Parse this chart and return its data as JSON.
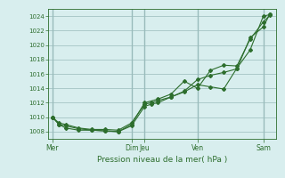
{
  "title": "",
  "xlabel": "Pression niveau de la mer( hPa )",
  "ylim": [
    1007,
    1025
  ],
  "yticks": [
    1008,
    1010,
    1012,
    1014,
    1016,
    1018,
    1020,
    1022,
    1024
  ],
  "bg_color": "#d8eeee",
  "grid_color": "#99bbbb",
  "line_color": "#2d6e2d",
  "xtick_labels": [
    "Mer",
    "",
    "Dim",
    "Jeu",
    "",
    "Ven",
    "",
    "Sam"
  ],
  "vline_positions": [
    0,
    6,
    7,
    11,
    16
  ],
  "vline_labels": [
    "Mer",
    "Dim",
    "Jeu",
    "Ven",
    "Sam"
  ],
  "line1_x": [
    0,
    0.5,
    1,
    2,
    3,
    4,
    5,
    6,
    7,
    7.5,
    8,
    9,
    10,
    11,
    12,
    13,
    14,
    15,
    16,
    16.5
  ],
  "line1_y": [
    1010,
    1009.2,
    1009.0,
    1008.5,
    1008.3,
    1008.3,
    1008.2,
    1009.2,
    1011.8,
    1012.0,
    1012.3,
    1012.8,
    1013.5,
    1014.5,
    1014.2,
    1013.9,
    1016.8,
    1019.3,
    1024.0,
    1024.2
  ],
  "line2_x": [
    0,
    0.5,
    1,
    2,
    3,
    4,
    5,
    6,
    7,
    7.5,
    8,
    9,
    10,
    11,
    12,
    13,
    14,
    15,
    16,
    16.5
  ],
  "line2_y": [
    1010,
    1009.0,
    1008.8,
    1008.4,
    1008.2,
    1008.1,
    1008.0,
    1008.8,
    1011.5,
    1011.8,
    1012.0,
    1012.8,
    1013.6,
    1015.2,
    1015.8,
    1016.2,
    1016.7,
    1021.0,
    1022.5,
    1024.3
  ],
  "line3_x": [
    0,
    0.5,
    1,
    2,
    3,
    4,
    5,
    6,
    7,
    8,
    9,
    10,
    11,
    12,
    13,
    14,
    15,
    16,
    16.5
  ],
  "line3_y": [
    1010,
    1009.0,
    1008.5,
    1008.2,
    1008.2,
    1008.1,
    1008.0,
    1009.0,
    1012.0,
    1012.5,
    1013.2,
    1015.0,
    1014.0,
    1016.5,
    1017.2,
    1017.1,
    1020.8,
    1023.2,
    1024.1
  ],
  "figsize": [
    3.2,
    2.0
  ],
  "dpi": 100
}
